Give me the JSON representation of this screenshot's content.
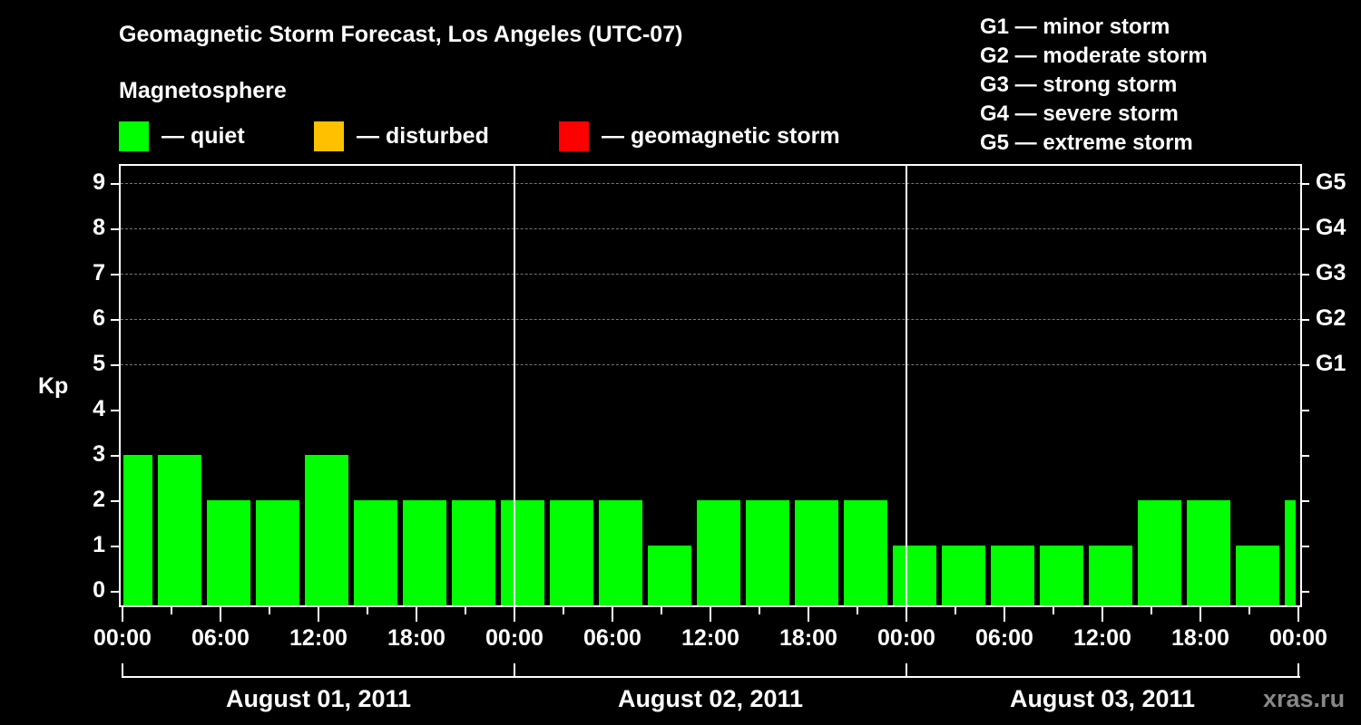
{
  "header": {
    "title": "Geomagnetic Storm Forecast, Los Angeles (UTC-07)",
    "subtitle": "Magnetosphere"
  },
  "legend": [
    {
      "label": "— quiet",
      "color": "#00ff00"
    },
    {
      "label": "— disturbed",
      "color": "#ffc000"
    },
    {
      "label": "— geomagnetic storm",
      "color": "#ff0000"
    }
  ],
  "storm_scale": [
    "G1 — minor storm",
    "G2 — moderate storm",
    "G3 — strong storm",
    "G4 — severe storm",
    "G5 — extreme storm"
  ],
  "y_axis": {
    "label": "Kp",
    "ticks": [
      "0",
      "1",
      "2",
      "3",
      "4",
      "5",
      "6",
      "7",
      "8",
      "9"
    ],
    "right_ticks": {
      "5": "G1",
      "6": "G2",
      "7": "G3",
      "8": "G4",
      "9": "G5"
    }
  },
  "x_axis": {
    "tick_labels": [
      "00:00",
      "06:00",
      "12:00",
      "18:00",
      "00:00",
      "06:00",
      "12:00",
      "18:00",
      "00:00",
      "06:00",
      "12:00",
      "18:00",
      "00:00"
    ],
    "days": [
      "August 01, 2011",
      "August 02, 2011",
      "August 03, 2011"
    ]
  },
  "brand": "xras.ru",
  "chart_data": {
    "type": "bar",
    "title": "Geomagnetic Storm Forecast, Los Angeles (UTC-07)",
    "xlabel": "",
    "ylabel": "Kp",
    "ylim": [
      0,
      9
    ],
    "grid": "dashed horizontal at Kp 5-9",
    "legend_position": "top",
    "bin_hours": 3,
    "categories": [
      "Jul 31 23:00",
      "Aug 01 02:00",
      "Aug 01 05:00",
      "Aug 01 08:00",
      "Aug 01 11:00",
      "Aug 01 14:00",
      "Aug 01 17:00",
      "Aug 01 20:00",
      "Aug 01 23:00",
      "Aug 02 02:00",
      "Aug 02 05:00",
      "Aug 02 08:00",
      "Aug 02 11:00",
      "Aug 02 14:00",
      "Aug 02 17:00",
      "Aug 02 20:00",
      "Aug 02 23:00",
      "Aug 03 02:00",
      "Aug 03 05:00",
      "Aug 03 08:00",
      "Aug 03 11:00",
      "Aug 03 14:00",
      "Aug 03 17:00",
      "Aug 03 20:00",
      "Aug 03 23:00"
    ],
    "values": [
      3,
      3,
      2,
      2,
      3,
      2,
      2,
      2,
      2,
      2,
      2,
      1,
      2,
      2,
      2,
      2,
      1,
      1,
      1,
      1,
      1,
      2,
      2,
      1,
      2
    ],
    "status": [
      "quiet",
      "quiet",
      "quiet",
      "quiet",
      "quiet",
      "quiet",
      "quiet",
      "quiet",
      "quiet",
      "quiet",
      "quiet",
      "quiet",
      "quiet",
      "quiet",
      "quiet",
      "quiet",
      "quiet",
      "quiet",
      "quiet",
      "quiet",
      "quiet",
      "quiet",
      "quiet",
      "quiet",
      "quiet"
    ]
  }
}
